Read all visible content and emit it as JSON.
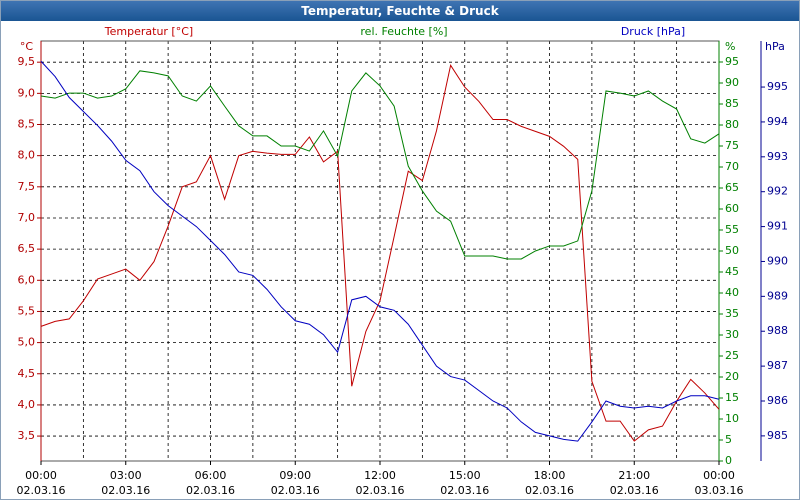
{
  "chart_data": {
    "type": "line",
    "title": "Temperatur, Feuchte & Druck",
    "x": [
      0,
      0.5,
      1,
      1.5,
      2,
      2.5,
      3,
      3.5,
      4,
      4.5,
      5,
      5.5,
      6,
      6.5,
      7,
      7.5,
      8,
      8.5,
      9,
      9.5,
      10,
      10.5,
      11,
      11.5,
      12,
      12.5,
      13,
      13.5,
      14,
      14.5,
      15,
      15.5,
      16,
      16.5,
      17,
      17.5,
      18,
      18.5,
      19,
      19.5,
      20,
      20.5,
      21,
      21.5,
      22,
      22.5,
      23,
      23.5,
      24
    ],
    "xlim": [
      0,
      24
    ],
    "xticks": [
      {
        "value": 0,
        "label": "00:00",
        "date": "02.03.16"
      },
      {
        "value": 3,
        "label": "03:00",
        "date": "02.03.16"
      },
      {
        "value": 6,
        "label": "06:00",
        "date": "02.03.16"
      },
      {
        "value": 9,
        "label": "09:00",
        "date": "02.03.16"
      },
      {
        "value": 12,
        "label": "12:00",
        "date": "02.03.16"
      },
      {
        "value": 15,
        "label": "15:00",
        "date": "02.03.16"
      },
      {
        "value": 18,
        "label": "18:00",
        "date": "02.03.16"
      },
      {
        "value": 21,
        "label": "21:00",
        "date": "02.03.16"
      },
      {
        "value": 24,
        "label": "00:00",
        "date": "03.03.16"
      }
    ],
    "xgrid": [
      1.5,
      3,
      4.5,
      6,
      7.5,
      9,
      10.5,
      12,
      13.5,
      15,
      16.5,
      18,
      19.5,
      21,
      22.5
    ],
    "y_label": "°C",
    "ylim": [
      3.1,
      9.84
    ],
    "yticks": [
      {
        "value": 3.5,
        "label": "3,5"
      },
      {
        "value": 4,
        "label": "4,0"
      },
      {
        "value": 4.5,
        "label": "4,5"
      },
      {
        "value": 5,
        "label": "5,0"
      },
      {
        "value": 5.5,
        "label": "5,5"
      },
      {
        "value": 6,
        "label": "6,0"
      },
      {
        "value": 6.5,
        "label": "6,5"
      },
      {
        "value": 7,
        "label": "7,0"
      },
      {
        "value": 7.5,
        "label": "7,5"
      },
      {
        "value": 8,
        "label": "8,0"
      },
      {
        "value": 8.5,
        "label": "8,5"
      },
      {
        "value": 9,
        "label": "9,0"
      },
      {
        "value": 9.5,
        "label": "9,5"
      }
    ],
    "y_color": "#b00000",
    "y2_label": "%",
    "y2lim": [
      0,
      100
    ],
    "y2ticks": [
      0,
      5,
      10,
      15,
      20,
      25,
      30,
      35,
      40,
      45,
      50,
      55,
      60,
      65,
      70,
      75,
      80,
      85,
      90,
      95
    ],
    "y2_color": "#008000",
    "y3_label": "hPa",
    "y3lim": [
      984.28,
      996.32
    ],
    "y3ticks": [
      985,
      986,
      987,
      988,
      989,
      990,
      991,
      992,
      993,
      994,
      995
    ],
    "y3_color": "#000090",
    "grid": true,
    "series": [
      {
        "name": "Temperatur [°C]",
        "color": "#c00000",
        "axis": "y",
        "values": [
          5.26,
          5.34,
          5.38,
          5.67,
          6.02,
          6.1,
          6.18,
          6.0,
          6.3,
          6.87,
          7.5,
          7.58,
          8.0,
          7.3,
          8.0,
          8.07,
          8.04,
          8.02,
          8.02,
          8.3,
          7.9,
          8.07,
          4.3,
          5.18,
          5.67,
          6.7,
          7.75,
          7.6,
          8.4,
          9.45,
          9.1,
          8.87,
          8.58,
          8.58,
          8.47,
          8.39,
          8.31,
          8.15,
          7.94,
          4.38,
          3.74,
          3.74,
          3.42,
          3.6,
          3.66,
          4.06,
          4.41,
          4.19,
          3.93
        ]
      },
      {
        "name": "rel. Feuchte [%]",
        "color": "#008000",
        "axis": "y2",
        "values": [
          86.9,
          86.4,
          87.6,
          87.6,
          86.4,
          86.9,
          88.6,
          92.9,
          92.4,
          91.7,
          86.9,
          85.7,
          89.3,
          84.5,
          79.8,
          77.4,
          77.4,
          75,
          75,
          73.8,
          78.6,
          72.6,
          88.1,
          92.4,
          89.3,
          84.5,
          70.2,
          64.3,
          59.5,
          57.1,
          48.8,
          48.8,
          48.8,
          48.1,
          48.1,
          50,
          51.2,
          51.2,
          52.4,
          64.3,
          88.1,
          87.6,
          86.9,
          88.1,
          85.7,
          83.8,
          76.7,
          75.7,
          77.9
        ]
      },
      {
        "name": "Druck [hPa]",
        "color": "#0000c0",
        "axis": "y3",
        "values": [
          995.74,
          995.3,
          994.7,
          994.3,
          993.9,
          993.45,
          992.9,
          992.6,
          992.0,
          991.6,
          991.3,
          991.0,
          990.6,
          990.2,
          989.7,
          989.6,
          989.2,
          988.7,
          988.3,
          988.2,
          987.9,
          987.4,
          988.9,
          989.0,
          988.7,
          988.6,
          988.2,
          987.6,
          987.0,
          986.7,
          986.6,
          986.3,
          986.0,
          985.8,
          985.4,
          985.1,
          985.0,
          984.9,
          984.85,
          985.4,
          986.0,
          985.85,
          985.8,
          985.85,
          985.8,
          986.0,
          986.15,
          986.15,
          986.05
        ]
      }
    ]
  }
}
